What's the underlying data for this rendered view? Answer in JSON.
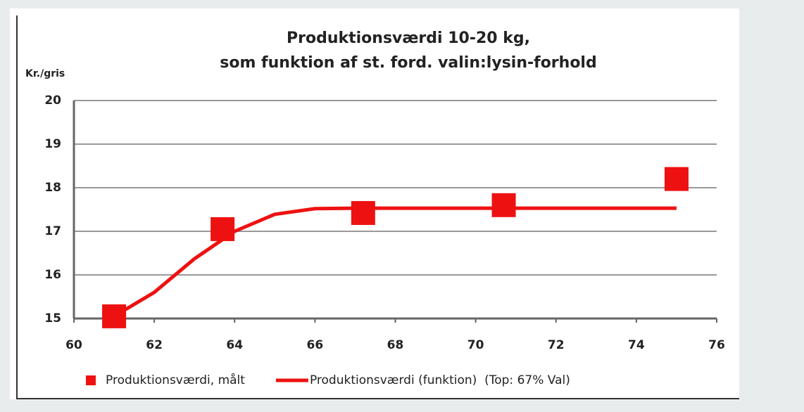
{
  "chart_data": {
    "type": "scatter",
    "title": [
      "Produktionsværdi 10-20 kg,",
      "som funktion af st. ford. valin:lysin-forhold"
    ],
    "y_label": "Kr./gris",
    "xlim": [
      60,
      76
    ],
    "xticks": [
      60,
      62,
      64,
      66,
      68,
      70,
      72,
      74,
      76
    ],
    "ylim": [
      15,
      20
    ],
    "yticks": [
      15,
      16,
      17,
      18,
      19,
      20
    ],
    "grid": true,
    "legend": "bottom",
    "series": [
      {
        "name": "Produktionsværdi, målt",
        "type": "scatter",
        "color": "#ee1111",
        "x": [
          61.0,
          63.7,
          67.2,
          70.7,
          75.0
        ],
        "values": [
          15.05,
          17.05,
          17.42,
          17.6,
          18.2
        ]
      },
      {
        "name": "Produktionsværdi (funktion)  (Top: 67% Val)",
        "type": "line",
        "color": "#ee1111",
        "x": [
          61,
          62,
          63,
          64,
          65,
          66,
          67,
          68,
          70,
          72,
          74,
          75
        ],
        "values": [
          15.05,
          15.6,
          16.37,
          17.0,
          17.39,
          17.52,
          17.53,
          17.53,
          17.53,
          17.53,
          17.53,
          17.53
        ]
      }
    ]
  }
}
